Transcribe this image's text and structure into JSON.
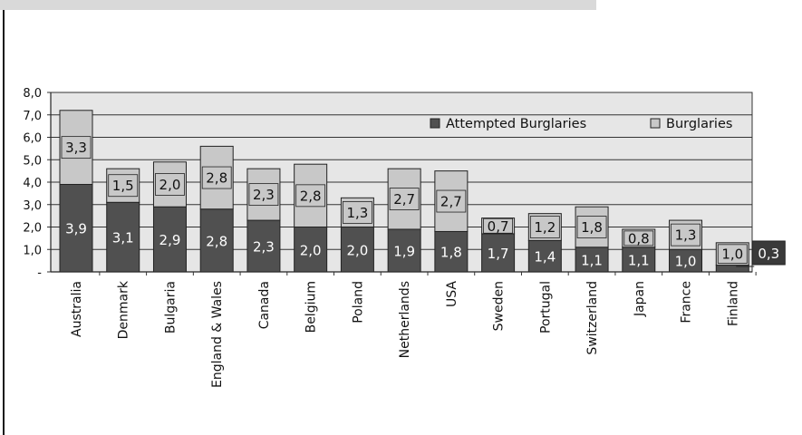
{
  "chart_data": {
    "type": "bar",
    "stacked": true,
    "categories": [
      "Australia",
      "Denmark",
      "Bulgaria",
      "England & Wales",
      "Canada",
      "Belgium",
      "Poland",
      "Netherlands",
      "USA",
      "Sweden",
      "Portugal",
      "Switzerland",
      "Japan",
      "France",
      "Finland"
    ],
    "series": [
      {
        "name": "Attempted Burglaries",
        "color": "#505050",
        "values": [
          3.9,
          3.1,
          2.9,
          2.8,
          2.3,
          2.0,
          2.0,
          1.9,
          1.8,
          1.7,
          1.4,
          1.1,
          1.1,
          1.0,
          0.3
        ],
        "labels": [
          "3,9",
          "3,1",
          "2,9",
          "2,8",
          "2,3",
          "2,0",
          "2,0",
          "1,9",
          "1,8",
          "1,7",
          "1,4",
          "1,1",
          "1,1",
          "1,0",
          "0,3"
        ]
      },
      {
        "name": "Burglaries",
        "color": "#c8c8c8",
        "values": [
          3.3,
          1.5,
          2.0,
          2.8,
          2.3,
          2.8,
          1.3,
          2.7,
          2.7,
          0.7,
          1.2,
          1.8,
          0.8,
          1.3,
          1.0
        ],
        "labels": [
          "3,3",
          "1,5",
          "2,0",
          "2,8",
          "2,3",
          "2,8",
          "1,3",
          "2,7",
          "2,7",
          "0,7",
          "1,2",
          "1,8",
          "0,8",
          "1,3",
          "1,0"
        ]
      }
    ],
    "yticks": [
      "-",
      "1,0",
      "2,0",
      "3,0",
      "4,0",
      "5,0",
      "6,0",
      "7,0",
      "8,0"
    ],
    "ylim": [
      0,
      8
    ],
    "grid": true,
    "legend_position": "top-right",
    "plot_background": "#e6e6e6"
  }
}
